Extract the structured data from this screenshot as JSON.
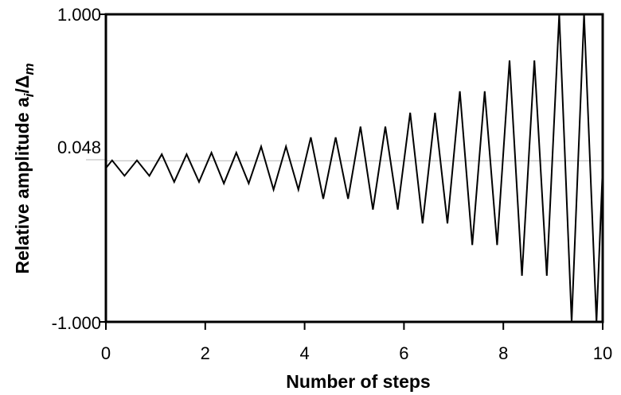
{
  "chart_data": {
    "type": "line",
    "title": "",
    "xlabel": "Number of steps",
    "ylabel_prefix": "Relative amplitude a",
    "ylabel_sub_i": "i",
    "ylabel_slash": "/Δ",
    "ylabel_sub_m": "m",
    "xlim": [
      0,
      10
    ],
    "ylim": [
      -1.0,
      1.0
    ],
    "x_ticks": [
      0,
      2,
      4,
      6,
      8,
      10
    ],
    "x_tick_labels": [
      "0",
      "2",
      "4",
      "6",
      "8",
      "10"
    ],
    "y_ticks": [
      -1.0,
      0.048,
      1.0
    ],
    "y_tick_labels": [
      "-1.000",
      "0.048",
      "1.000"
    ],
    "reference_line_y": 0.048,
    "grid": false,
    "line_color": "#000000",
    "reference_line_color": "#b5b5b5",
    "series": [
      {
        "x": [
          0,
          0.125,
          0.375,
          0.625,
          0.875,
          1.125,
          1.375,
          1.625,
          1.875,
          2.125,
          2.375,
          2.625,
          2.875,
          3.125,
          3.375,
          3.625,
          3.875,
          4.125,
          4.375,
          4.625,
          4.875,
          5.125,
          5.375,
          5.625,
          5.875,
          6.125,
          6.375,
          6.625,
          6.875,
          7.125,
          7.375,
          7.625,
          7.875,
          8.125,
          8.375,
          8.625,
          8.875,
          9.125,
          9.375,
          9.625,
          9.875,
          10.0
        ],
        "y": [
          0.0,
          0.05,
          -0.05,
          0.05,
          -0.05,
          0.09,
          -0.09,
          0.09,
          -0.09,
          0.1,
          -0.1,
          0.1,
          -0.1,
          0.14,
          -0.14,
          0.14,
          -0.14,
          0.2,
          -0.2,
          0.2,
          -0.2,
          0.27,
          -0.27,
          0.27,
          -0.27,
          0.36,
          -0.36,
          0.36,
          -0.36,
          0.5,
          -0.5,
          0.5,
          -0.5,
          0.7,
          -0.7,
          0.7,
          -0.7,
          1.0,
          -1.0,
          1.0,
          -1.0,
          0.0
        ]
      }
    ]
  }
}
